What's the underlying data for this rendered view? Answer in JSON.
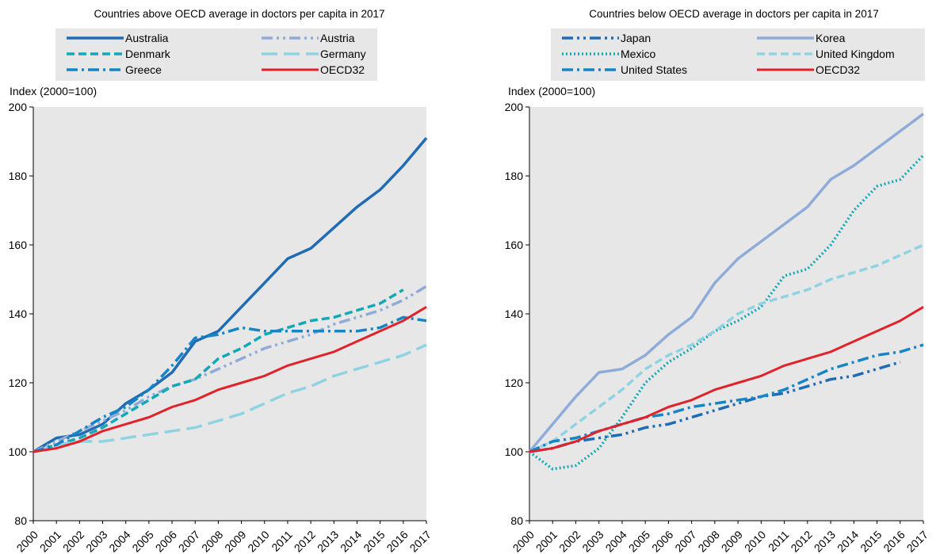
{
  "chart_data": [
    {
      "type": "line",
      "title": "Countries above OECD average in doctors per capita in 2017",
      "ylabel": "Index (2000=100)",
      "xlabel": "",
      "ylim": [
        80,
        200
      ],
      "yticks": [
        80,
        100,
        120,
        140,
        160,
        180,
        200
      ],
      "categories": [
        "2000",
        "2001",
        "2002",
        "2003",
        "2004",
        "2005",
        "2006",
        "2007",
        "2008",
        "2009",
        "2010",
        "2011",
        "2012",
        "2013",
        "2014",
        "2015",
        "2016",
        "2017"
      ],
      "grid": false,
      "legend_position": "top",
      "series": [
        {
          "name": "Australia",
          "color": "#1f6cb5",
          "dash": "solid",
          "values": [
            100,
            104,
            105,
            108,
            114,
            118,
            123,
            132,
            135,
            142,
            149,
            156,
            159,
            165,
            171,
            176,
            183,
            191
          ]
        },
        {
          "name": "Austria",
          "color": "#8facd9",
          "dash": "dashdotdot",
          "values": [
            100,
            103,
            106,
            109,
            112,
            116,
            119,
            121,
            124,
            127,
            130,
            132,
            134,
            137,
            139,
            141,
            144,
            148
          ]
        },
        {
          "name": "Denmark",
          "color": "#12a8b5",
          "dash": "dash",
          "values": [
            100,
            102,
            104,
            107,
            111,
            115,
            119,
            121,
            127,
            130,
            134,
            136,
            138,
            139,
            141,
            143,
            147,
            null
          ]
        },
        {
          "name": "Germany",
          "color": "#8fd3e3",
          "dash": "longdash",
          "values": [
            100,
            102,
            103,
            103,
            104,
            105,
            106,
            107,
            109,
            111,
            114,
            117,
            119,
            122,
            124,
            126,
            128,
            131
          ]
        },
        {
          "name": "Greece",
          "color": "#1585c6",
          "dash": "dashdot",
          "values": [
            100,
            102,
            106,
            110,
            113,
            118,
            125,
            133,
            134,
            136,
            135,
            135,
            135,
            135,
            135,
            136,
            139,
            138
          ]
        },
        {
          "name": "OECD32",
          "color": "#e0232b",
          "dash": "solid",
          "values": [
            100,
            101,
            103,
            106,
            108,
            110,
            113,
            115,
            118,
            120,
            122,
            125,
            127,
            129,
            132,
            135,
            138,
            142
          ]
        }
      ]
    },
    {
      "type": "line",
      "title": "Countries below OECD average in doctors per capita in 2017",
      "ylabel": "Index (2000=100)",
      "xlabel": "",
      "ylim": [
        80,
        200
      ],
      "yticks": [
        80,
        100,
        120,
        140,
        160,
        180,
        200
      ],
      "categories": [
        "2000",
        "2001",
        "2002",
        "2003",
        "2004",
        "2005",
        "2006",
        "2007",
        "2008",
        "2009",
        "2010",
        "2011",
        "2012",
        "2013",
        "2014",
        "2015",
        "2016",
        "2017"
      ],
      "grid": false,
      "legend_position": "top",
      "series": [
        {
          "name": "Japan",
          "color": "#1f6cb5",
          "dash": "dashdotdot",
          "values": [
            100,
            101,
            103,
            104,
            105,
            107,
            108,
            110,
            112,
            114,
            116,
            117,
            119,
            121,
            122,
            124,
            126,
            null
          ]
        },
        {
          "name": "Korea",
          "color": "#8facd9",
          "dash": "solid",
          "values": [
            100,
            108,
            116,
            123,
            124,
            128,
            134,
            139,
            149,
            156,
            161,
            166,
            171,
            179,
            183,
            188,
            193,
            198
          ]
        },
        {
          "name": "Mexico",
          "color": "#12a8b5",
          "dash": "dot",
          "values": [
            100,
            95,
            96,
            101,
            110,
            120,
            126,
            130,
            135,
            138,
            142,
            151,
            153,
            160,
            170,
            177,
            179,
            186
          ]
        },
        {
          "name": "United Kingdom",
          "color": "#8fd3e3",
          "dash": "dash",
          "values": [
            100,
            103,
            108,
            113,
            118,
            124,
            128,
            131,
            135,
            140,
            143,
            145,
            147,
            150,
            152,
            154,
            157,
            160
          ]
        },
        {
          "name": "United States",
          "color": "#1585c6",
          "dash": "dashdot",
          "values": [
            100,
            103,
            104,
            106,
            108,
            110,
            111,
            113,
            114,
            115,
            116,
            118,
            121,
            124,
            126,
            128,
            129,
            131
          ]
        },
        {
          "name": "OECD32",
          "color": "#e0232b",
          "dash": "solid",
          "values": [
            100,
            101,
            103,
            106,
            108,
            110,
            113,
            115,
            118,
            120,
            122,
            125,
            127,
            129,
            132,
            135,
            138,
            142
          ]
        }
      ]
    }
  ]
}
